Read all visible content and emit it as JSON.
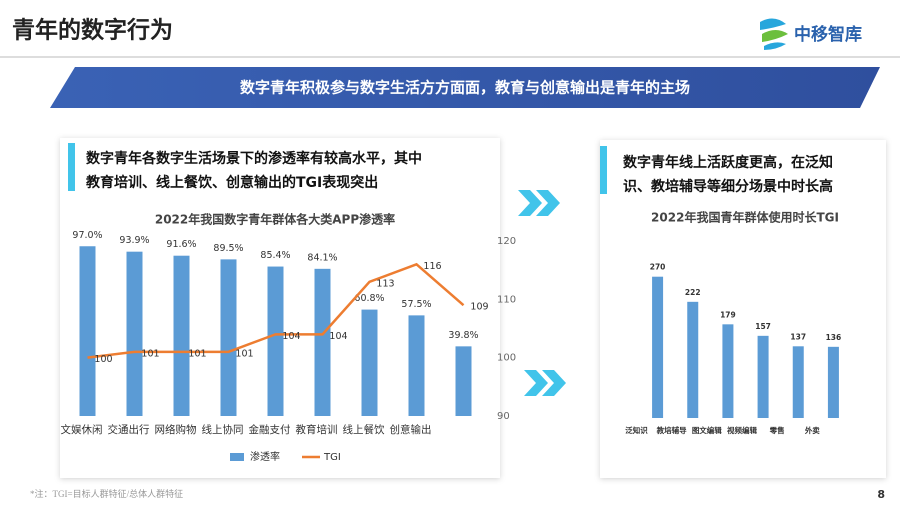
{
  "header": {
    "title": "青年的数字行为",
    "logo": "中移智库"
  },
  "banner": "数字青年积极参与数字生活方方面面，教育与创意输出是青年的主场",
  "panels": [
    {
      "lines": [
        "数字青年各数字生活场景下的渗透率有较高水平，其中",
        "教育培训、线上餐饮、创意输出的TGI表现突出"
      ]
    },
    {
      "lines": [
        "数字青年线上活跃度更高，在泛知",
        "识、教培辅导等细分场景中时长高"
      ]
    }
  ],
  "chart_data": [
    {
      "type": "combo",
      "title": "2022年我国数字青年群体各大类APP渗透率",
      "categories": [
        "文娱休闲",
        "交通出行",
        "网络购物",
        "线上协同",
        "金融支付",
        "教育培训",
        "线上餐饮",
        "创意输出",
        null
      ],
      "series": [
        {
          "name": "渗透率",
          "color": "#5b9bd5",
          "values": [
            97.0,
            93.9,
            91.6,
            89.5,
            85.4,
            84.1,
            60.8,
            57.5,
            39.8
          ],
          "value_labels": [
            "97.0%",
            "93.9%",
            "91.6%",
            "89.5%",
            "85.4%",
            "84.1%",
            "60.8%",
            "57.5%",
            "39.8%"
          ]
        },
        {
          "name": "TGI",
          "color": "#ed7d31",
          "axis": "y2",
          "values": [
            100,
            101,
            101,
            101,
            104,
            104,
            113,
            116,
            109
          ]
        }
      ],
      "ylim": [
        0,
        100
      ],
      "y2lim": [
        90,
        120
      ],
      "y2ticks": [
        90,
        100,
        110,
        120
      ],
      "legend": "bottom"
    },
    {
      "type": "bar",
      "title": "2022年我国青年群体使用时长TGI",
      "categories": [
        "泛知识",
        "教培辅导",
        "图文编辑",
        "视频编辑",
        "零售",
        "外卖"
      ],
      "values": [
        270,
        222,
        179,
        157,
        137,
        136
      ],
      "color": "#5b9bd5",
      "ylim": [
        0,
        300
      ]
    }
  ],
  "footnote": "*注：TGI=目标人群特征/总体人群特征",
  "page_number": "8"
}
